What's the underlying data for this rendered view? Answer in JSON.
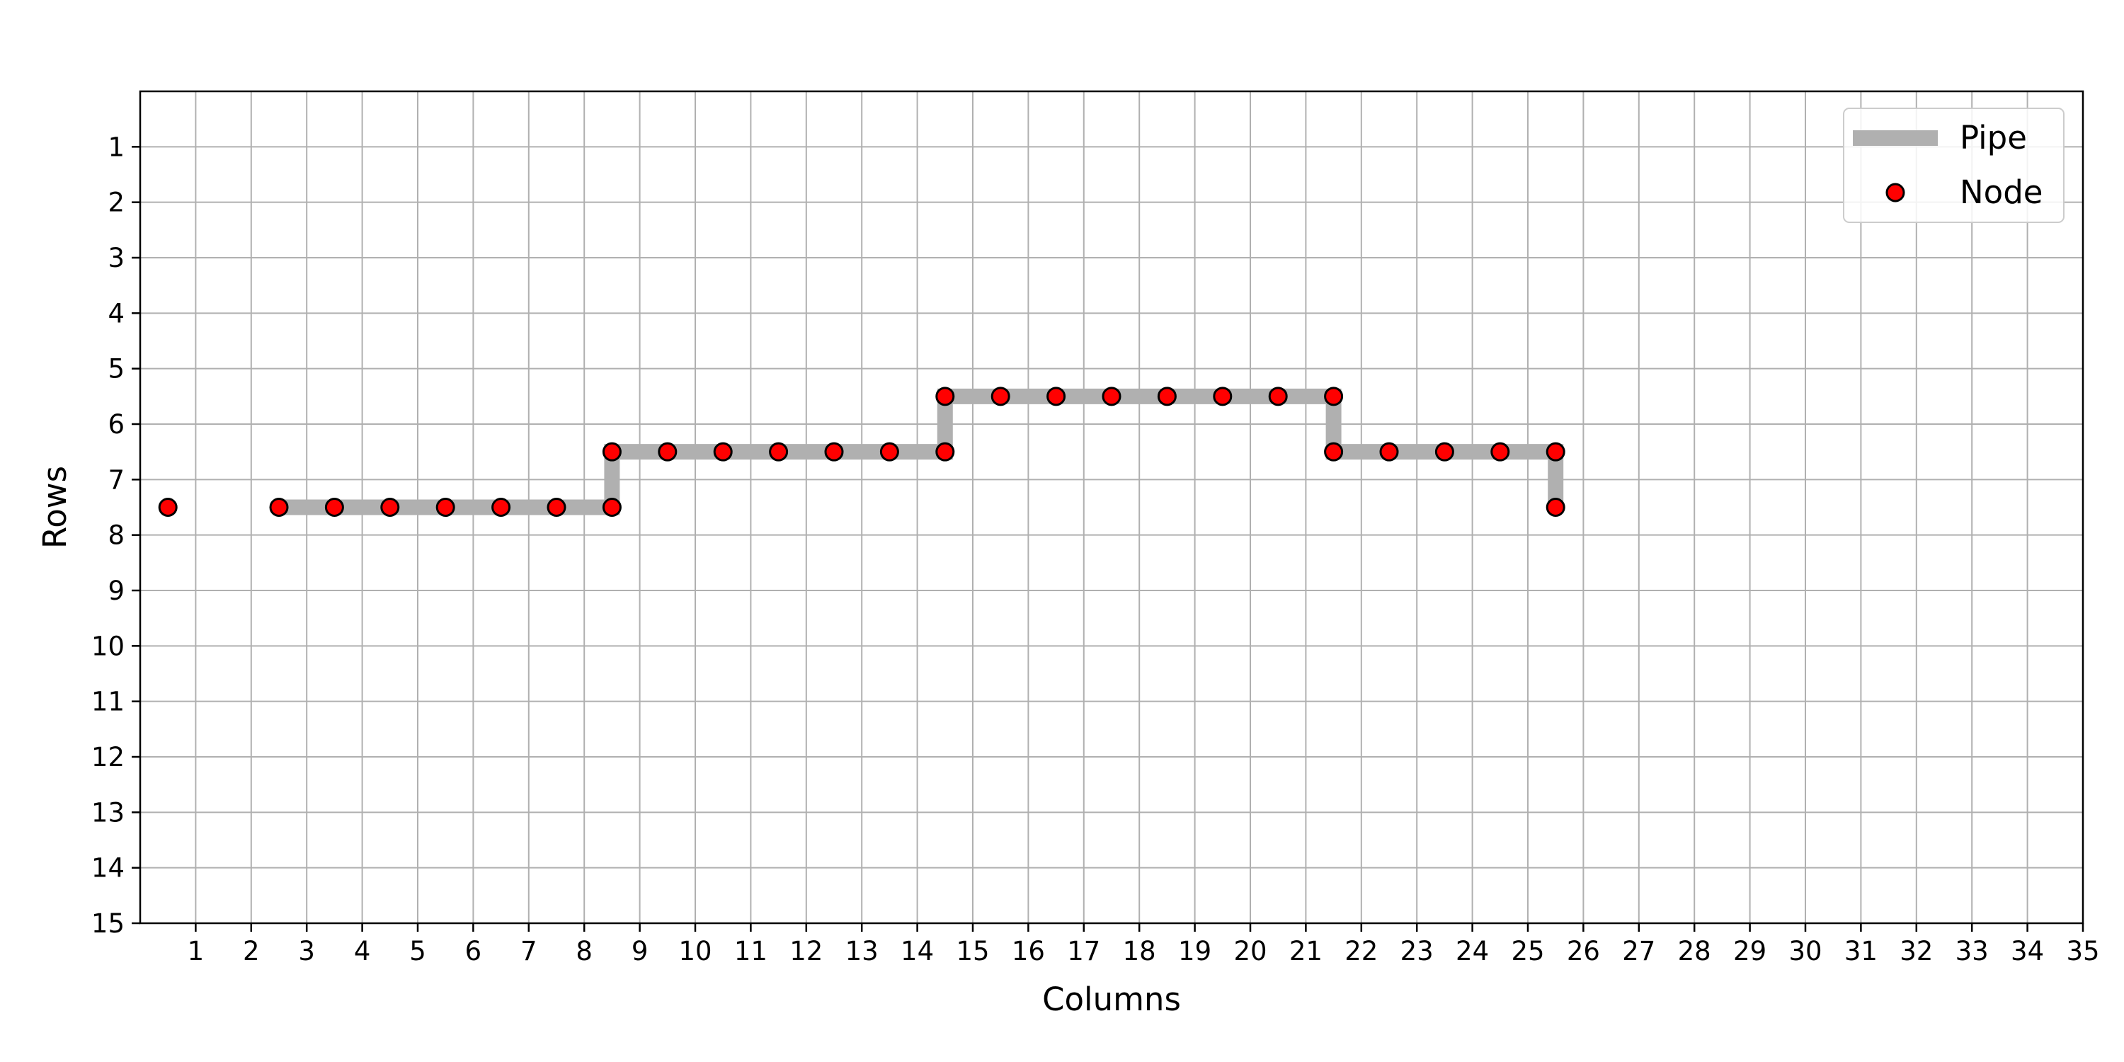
{
  "chart_data": {
    "type": "scatter",
    "xlabel": "Columns",
    "ylabel": "Rows",
    "xlim": [
      0,
      35
    ],
    "ylim": [
      15,
      0
    ],
    "y_inverted": true,
    "xticks": [
      1,
      2,
      3,
      4,
      5,
      6,
      7,
      8,
      9,
      10,
      11,
      12,
      13,
      14,
      15,
      16,
      17,
      18,
      19,
      20,
      21,
      22,
      23,
      24,
      25,
      26,
      27,
      28,
      29,
      30,
      31,
      32,
      33,
      34,
      35
    ],
    "yticks": [
      1,
      2,
      3,
      4,
      5,
      6,
      7,
      8,
      9,
      10,
      11,
      12,
      13,
      14,
      15
    ],
    "grid": true,
    "legend_position": "top-right",
    "series": [
      {
        "name": "Pipe",
        "kind": "line",
        "color": "#b0b0b0",
        "points": [
          [
            2.5,
            7.5
          ],
          [
            8.5,
            7.5
          ],
          [
            8.5,
            6.5
          ],
          [
            14.5,
            6.5
          ],
          [
            14.5,
            5.5
          ],
          [
            21.5,
            5.5
          ],
          [
            21.5,
            6.5
          ],
          [
            25.5,
            6.5
          ],
          [
            25.5,
            7.5
          ]
        ]
      },
      {
        "name": "Node",
        "kind": "scatter",
        "color": "#ff0000",
        "edgecolor": "#000000",
        "points": [
          [
            0.5,
            7.5
          ],
          [
            2.5,
            7.5
          ],
          [
            3.5,
            7.5
          ],
          [
            4.5,
            7.5
          ],
          [
            5.5,
            7.5
          ],
          [
            6.5,
            7.5
          ],
          [
            7.5,
            7.5
          ],
          [
            8.5,
            7.5
          ],
          [
            8.5,
            6.5
          ],
          [
            9.5,
            6.5
          ],
          [
            10.5,
            6.5
          ],
          [
            11.5,
            6.5
          ],
          [
            12.5,
            6.5
          ],
          [
            13.5,
            6.5
          ],
          [
            14.5,
            6.5
          ],
          [
            14.5,
            5.5
          ],
          [
            15.5,
            5.5
          ],
          [
            16.5,
            5.5
          ],
          [
            17.5,
            5.5
          ],
          [
            18.5,
            5.5
          ],
          [
            19.5,
            5.5
          ],
          [
            20.5,
            5.5
          ],
          [
            21.5,
            5.5
          ],
          [
            21.5,
            6.5
          ],
          [
            22.5,
            6.5
          ],
          [
            23.5,
            6.5
          ],
          [
            24.5,
            6.5
          ],
          [
            25.5,
            6.5
          ],
          [
            25.5,
            7.5
          ]
        ]
      }
    ]
  }
}
